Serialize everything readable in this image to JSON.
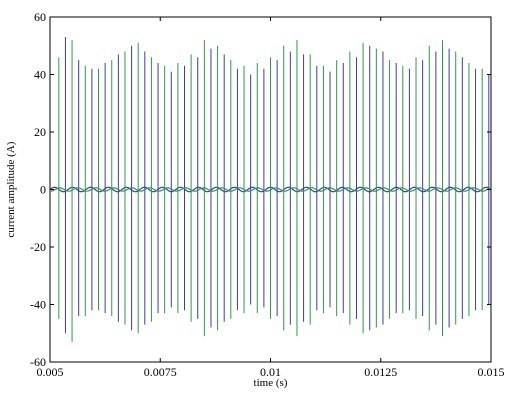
{
  "chart_data": {
    "type": "line",
    "title": "",
    "xlabel": "time (s)",
    "ylabel": "current amplitude (A)",
    "xlim": [
      0.005,
      0.015
    ],
    "ylim": [
      -60,
      60
    ],
    "x_ticks": [
      0.005,
      0.0075,
      0.01,
      0.0125,
      0.015
    ],
    "x_tick_labels": [
      "0.005",
      "0.0075",
      "0.01",
      "0.0125",
      "0.015"
    ],
    "y_ticks": [
      -60,
      -40,
      -20,
      0,
      20,
      40,
      60
    ],
    "y_tick_labels": [
      "-60",
      "-40",
      "-20",
      "0",
      "20",
      "40",
      "60"
    ],
    "grid": false,
    "series": [
      {
        "color": "#3b3bb3",
        "x": [
          0.00535,
          0.00565,
          0.00595,
          0.00625,
          0.00655,
          0.00685,
          0.00715,
          0.00745,
          0.00775,
          0.00805,
          0.00835,
          0.00865,
          0.00895,
          0.00925,
          0.00955,
          0.00985,
          0.01015,
          0.01045,
          0.01075,
          0.01105,
          0.01135,
          0.01165,
          0.01195,
          0.01225,
          0.01255,
          0.01285,
          0.01315,
          0.01345,
          0.01375,
          0.01405,
          0.01435,
          0.01465,
          0.01495
        ],
        "peak_max": [
          53,
          45,
          42,
          44,
          47,
          50,
          48,
          44,
          41,
          43,
          46,
          49,
          47,
          42,
          40,
          42,
          45,
          48,
          47,
          43,
          41,
          44,
          46,
          50,
          48,
          44,
          42,
          45,
          48,
          49,
          46,
          42,
          40
        ],
        "peak_min": [
          -50,
          -44,
          -42,
          -43,
          -46,
          -49,
          -47,
          -43,
          -41,
          -42,
          -45,
          -48,
          -46,
          -42,
          -40,
          -41,
          -44,
          -47,
          -46,
          -42,
          -41,
          -43,
          -45,
          -49,
          -47,
          -43,
          -42,
          -44,
          -47,
          -48,
          -45,
          -42,
          -40
        ]
      },
      {
        "color": "#2e9a4a",
        "x": [
          0.0052,
          0.0055,
          0.0058,
          0.0061,
          0.0064,
          0.0067,
          0.007,
          0.0073,
          0.0076,
          0.0079,
          0.0082,
          0.0085,
          0.0088,
          0.0091,
          0.0094,
          0.0097,
          0.01,
          0.0103,
          0.0106,
          0.0109,
          0.0112,
          0.0115,
          0.0118,
          0.0121,
          0.0124,
          0.0127,
          0.013,
          0.0133,
          0.0136,
          0.0139,
          0.0142,
          0.0145,
          0.0148
        ],
        "peak_max": [
          46,
          52,
          43,
          42,
          45,
          48,
          51,
          46,
          43,
          44,
          47,
          52,
          50,
          45,
          43,
          44,
          46,
          50,
          52,
          47,
          43,
          45,
          48,
          51,
          49,
          45,
          43,
          46,
          50,
          52,
          48,
          44,
          42
        ],
        "peak_min": [
          -45,
          -53,
          -44,
          -42,
          -44,
          -47,
          -50,
          -46,
          -43,
          -43,
          -46,
          -51,
          -49,
          -45,
          -43,
          -43,
          -45,
          -49,
          -51,
          -47,
          -43,
          -44,
          -47,
          -50,
          -48,
          -45,
          -43,
          -45,
          -49,
          -51,
          -47,
          -44,
          -42
        ]
      }
    ]
  }
}
